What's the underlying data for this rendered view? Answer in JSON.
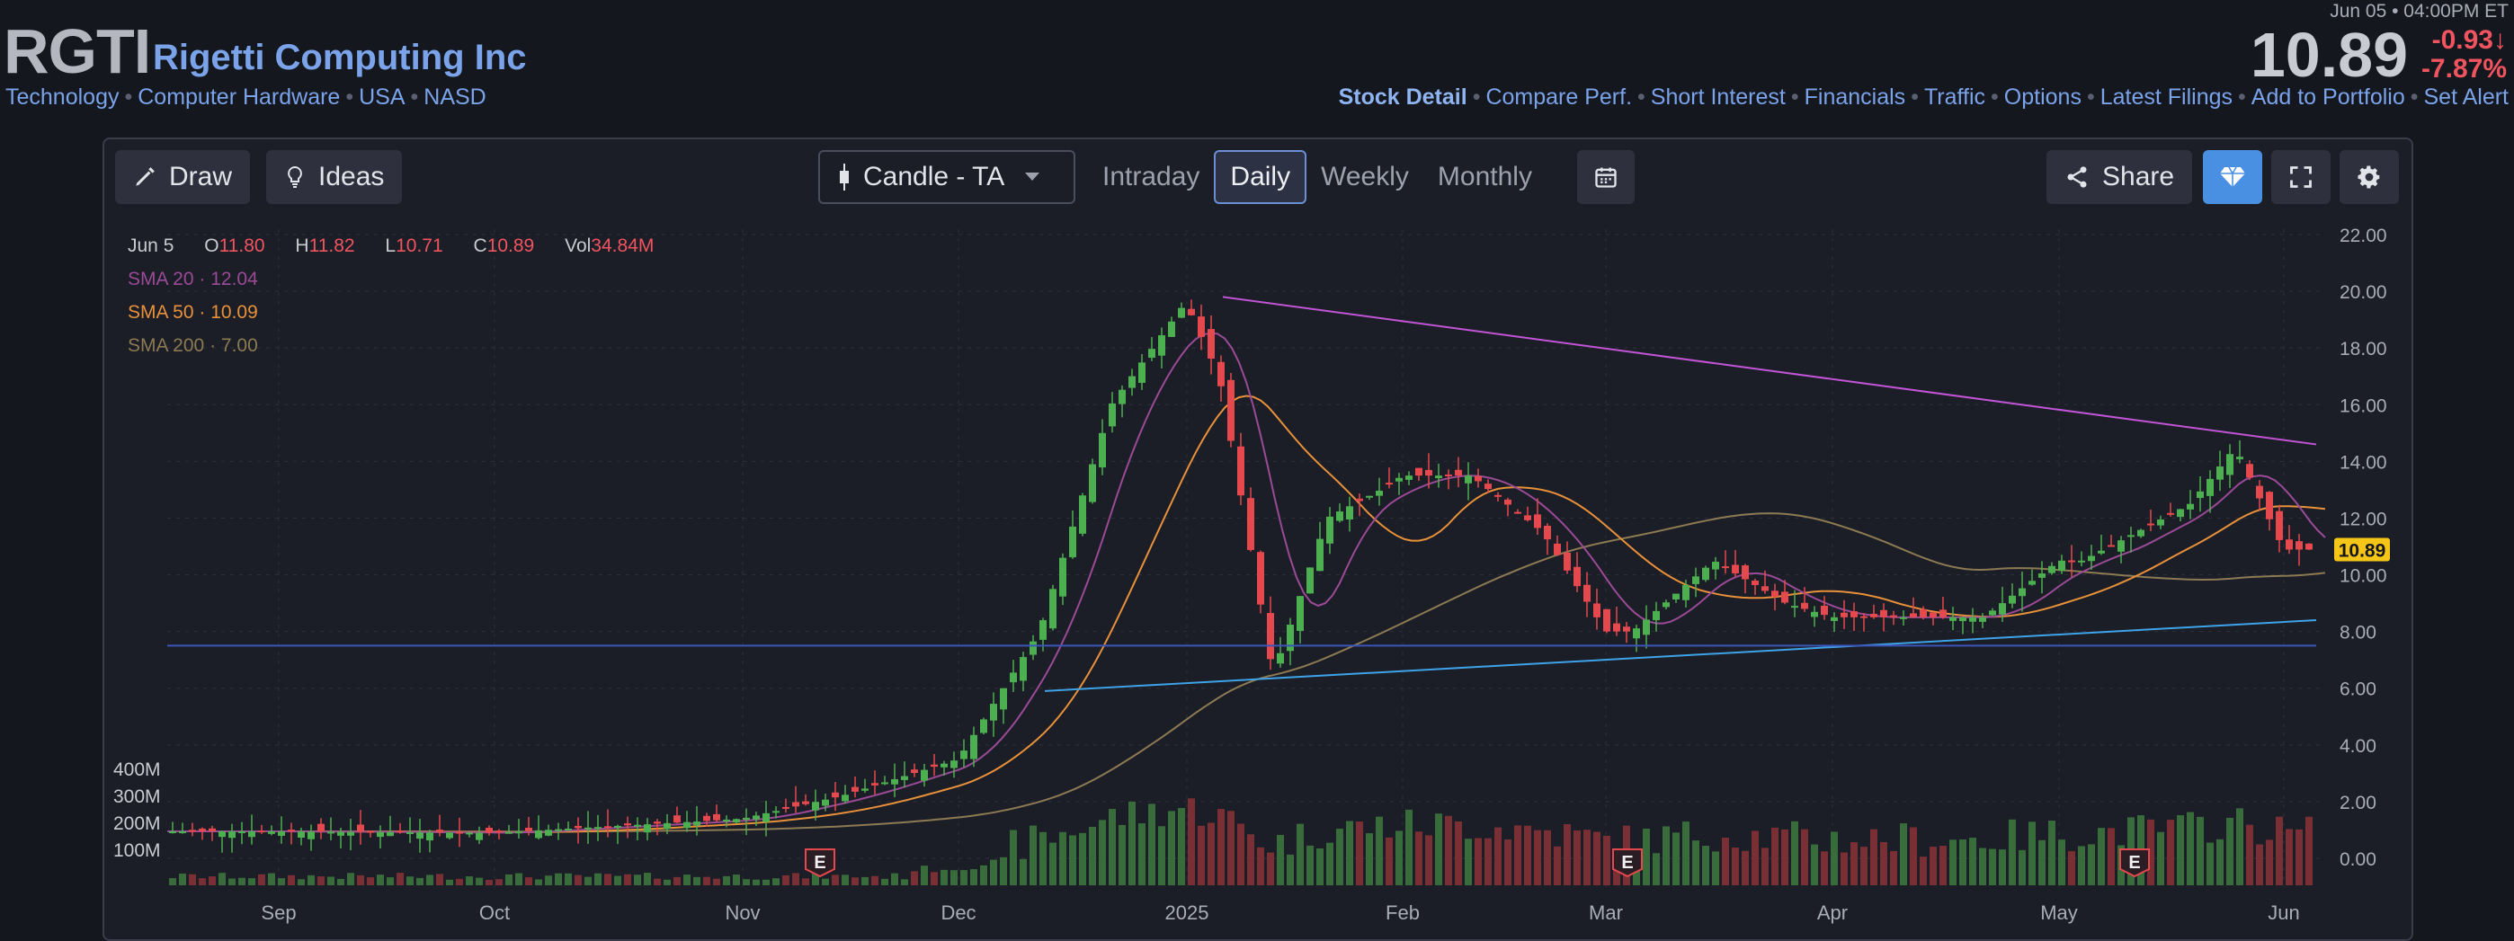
{
  "header": {
    "ticker": "RGTI",
    "company": "Rigetti Computing Inc",
    "tags": [
      "Technology",
      "Computer Hardware",
      "USA",
      "NASD"
    ],
    "timestamp": "Jun 05 • 04:00PM ET",
    "price": "10.89",
    "change": "-0.93↓",
    "change_pct": "-7.87%"
  },
  "nav": {
    "active": "Stock Detail",
    "items": [
      "Compare Perf.",
      "Short Interest",
      "Financials",
      "Traffic",
      "Options",
      "Latest Filings",
      "Add to Portfolio",
      "Set Alert"
    ]
  },
  "toolbar": {
    "draw": "Draw",
    "ideas": "Ideas",
    "chart_type": "Candle - TA",
    "timeframes": [
      "Intraday",
      "Daily",
      "Weekly",
      "Monthly"
    ],
    "active_timeframe": "Daily",
    "share": "Share"
  },
  "ohlc": {
    "date": "Jun 5",
    "o_label": "O",
    "o": "11.80",
    "h_label": "H",
    "h": "11.82",
    "l_label": "L",
    "l": "10.71",
    "c_label": "C",
    "c": "10.89",
    "vol_label": "Vol",
    "vol": "34.84M"
  },
  "sma": [
    {
      "label": "SMA 20",
      "value": "12.04",
      "color": "#9a4a96"
    },
    {
      "label": "SMA 50",
      "value": "10.09",
      "color": "#e8913a"
    },
    {
      "label": "SMA 200",
      "value": "7.00",
      "color": "#8c7a52"
    }
  ],
  "colors": {
    "up": "#4caf50",
    "down": "#e5484d",
    "accent": "#3b82f6",
    "link": "#7aa3ea"
  },
  "chart_data": {
    "type": "candlestick",
    "y_ticks": [
      "22.00",
      "20.00",
      "18.00",
      "16.00",
      "14.00",
      "12.00",
      "10.00",
      "8.00",
      "6.00",
      "4.00",
      "2.00",
      "0.00"
    ],
    "ylim": [
      0,
      22
    ],
    "volume_ticks": [
      "400M",
      "300M",
      "200M",
      "100M"
    ],
    "x_labels": [
      "Sep",
      "Oct",
      "Nov",
      "Dec",
      "2025",
      "Feb",
      "Mar",
      "Apr",
      "May",
      "Jun"
    ],
    "last_price_label": "10.89",
    "earnings_marker": "E",
    "key_points": [
      {
        "date": "Sep",
        "close": 0.95
      },
      {
        "date": "Oct",
        "close": 0.9
      },
      {
        "date": "Nov",
        "close": 1.4
      },
      {
        "date": "Dec",
        "close": 3.5
      },
      {
        "date": "2025",
        "close": 19.5
      },
      {
        "date": "Feb",
        "close": 13.5
      },
      {
        "date": "Mar",
        "close": 8.0
      },
      {
        "date": "Apr",
        "close": 8.5
      },
      {
        "date": "May",
        "close": 10.5
      },
      {
        "date": "Jun",
        "close": 10.89
      }
    ]
  }
}
